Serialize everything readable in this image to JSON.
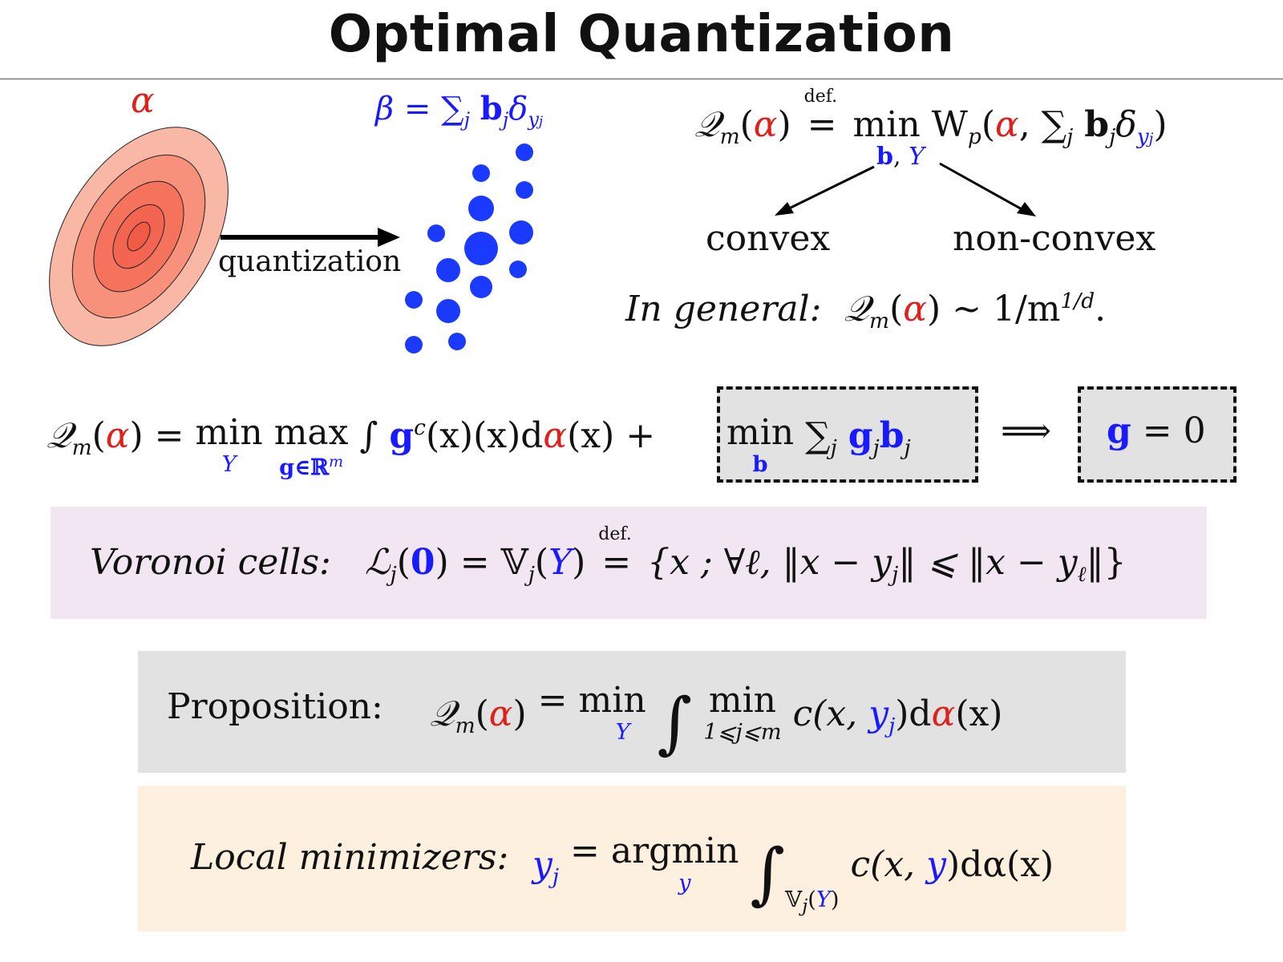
{
  "title": "Optimal Quantization",
  "figure": {
    "alpha_label": "α",
    "beta_label": "β = ∑",
    "beta_sub": "j",
    "beta_b": "b",
    "beta_bsub": "j",
    "beta_delta": "δ",
    "beta_dsub": "y",
    "beta_dsubsub": "j",
    "arrow_label": "quantization",
    "colors": {
      "alpha": "#e0211b",
      "beta": "#1a1aff"
    }
  },
  "definition": {
    "lhs": "𝒬",
    "lhs_sub": "m",
    "alpha": "α",
    "defeq_top": "def.",
    "defeq": "=",
    "min": "min",
    "min_under_b": "b",
    "min_under_sep": ", ",
    "min_under_Y": "Y",
    "wass": "W",
    "wass_sub": "p",
    "sum": "∑",
    "sum_sub": "j",
    "b": "b",
    "b_sub": "j",
    "delta": "δ",
    "delta_sub": "y",
    "delta_subsub": "j",
    "branch_left": "convex",
    "branch_right": "non-convex"
  },
  "general": {
    "label": "In general:",
    "lhs": "𝒬",
    "lhs_sub": "m",
    "alpha": "α",
    "rhs": "∼ 1/m",
    "rhs_sup": "1/d",
    "end": "."
  },
  "dual": {
    "lhs": "𝒬",
    "lhs_sub": "m",
    "alpha": "α",
    "eq": "=",
    "min": "min",
    "min_under": "Y",
    "max": "max",
    "max_under": "g∈ℝ",
    "max_under_sup": "m",
    "integral": "∫",
    "g": "g",
    "g_sup": "c",
    "integrand": "(x)(x)d",
    "alpha2": "α",
    "integrand_end": "(x) +",
    "box_min": "min",
    "box_min_under": "b",
    "box_sum": "∑",
    "box_sum_sub": "j",
    "box_g": "g",
    "box_g_sub": "j",
    "box_b": "b",
    "box_b_sub": "j",
    "implies": "⟹",
    "result_g": "g",
    "result_rest": "= 0"
  },
  "voronoi": {
    "label": "Voronoi cells:",
    "L": "ℒ",
    "L_sub": "j",
    "zero": "0",
    "eq": "=",
    "V": "𝕍",
    "V_sub": "j",
    "Y": "Y",
    "defeq_top": "def.",
    "defeq": "=",
    "set": "{x ; ∀ℓ, ‖x − y",
    "set_sub1": "j",
    "set_mid": "‖ ⩽ ‖x − y",
    "set_sub2": "ℓ",
    "set_end": "‖}"
  },
  "proposition": {
    "label": "Proposition:",
    "lhs": "𝒬",
    "lhs_sub": "m",
    "alpha": "α",
    "eq": "= min",
    "min_under": "Y",
    "integral": "∫",
    "inner_min": "min",
    "inner_under": "1⩽j⩽m",
    "cost": "c(x, ",
    "y": "y",
    "y_sub": "j",
    "cost_end": ")d",
    "alpha2": "α",
    "end": "(x)"
  },
  "local": {
    "label": "Local minimizers:",
    "y": "y",
    "y_sub": "j",
    "eq": "= argmin",
    "argmin_under": "y",
    "integral": "∫",
    "int_under_V": "𝕍",
    "int_under_Vsub": "j",
    "int_under_open": "(",
    "int_under_Y": "Y",
    "int_under_close": ")",
    "cost": "c(x, ",
    "y2": "y",
    "cost_end": ")dα(x)"
  },
  "chart_data": {
    "type": "scatter",
    "title": "",
    "xlabel": "",
    "ylabel": "",
    "series": [
      {
        "values": []
      }
    ]
  }
}
